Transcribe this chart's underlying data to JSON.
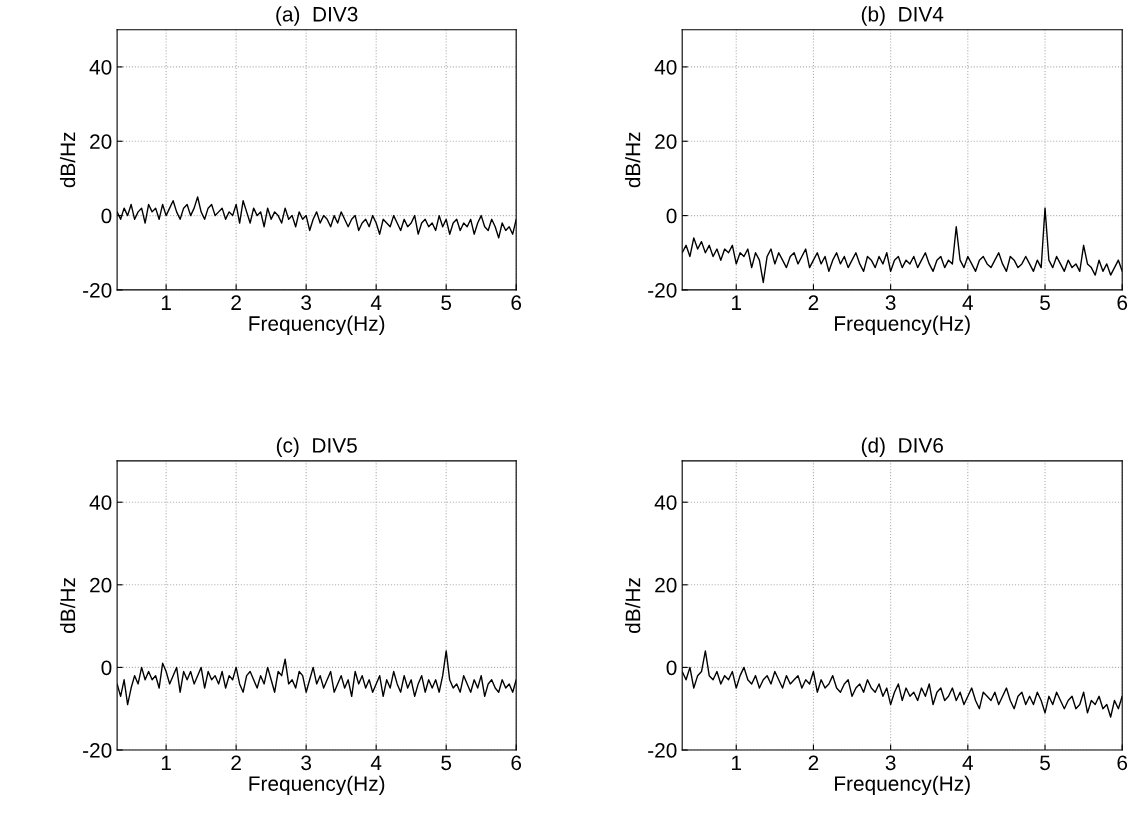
{
  "chart_data": [
    {
      "type": "line",
      "title": "(a)  DIV3",
      "xlabel": "Frequency(Hz)",
      "ylabel": "dB/Hz",
      "xlim": [
        0.3,
        6
      ],
      "ylim": [
        -20,
        50
      ],
      "xticks": [
        1,
        2,
        3,
        4,
        5,
        6
      ],
      "yticks": [
        -20,
        0,
        20,
        40
      ],
      "grid": true,
      "line_style": "solid",
      "marker": "none",
      "x": [
        0.3,
        0.35,
        0.4,
        0.45,
        0.5,
        0.55,
        0.6,
        0.65,
        0.7,
        0.75,
        0.8,
        0.85,
        0.9,
        0.95,
        1.0,
        1.05,
        1.1,
        1.15,
        1.2,
        1.25,
        1.3,
        1.35,
        1.4,
        1.45,
        1.5,
        1.55,
        1.6,
        1.65,
        1.7,
        1.75,
        1.8,
        1.85,
        1.9,
        1.95,
        2.0,
        2.05,
        2.1,
        2.15,
        2.2,
        2.25,
        2.3,
        2.35,
        2.4,
        2.45,
        2.5,
        2.55,
        2.6,
        2.65,
        2.7,
        2.75,
        2.8,
        2.85,
        2.9,
        2.95,
        3.0,
        3.05,
        3.1,
        3.15,
        3.2,
        3.25,
        3.3,
        3.35,
        3.4,
        3.45,
        3.5,
        3.55,
        3.6,
        3.65,
        3.7,
        3.75,
        3.8,
        3.85,
        3.9,
        3.95,
        4.0,
        4.05,
        4.1,
        4.15,
        4.2,
        4.25,
        4.3,
        4.35,
        4.4,
        4.45,
        4.5,
        4.55,
        4.6,
        4.65,
        4.7,
        4.75,
        4.8,
        4.85,
        4.9,
        4.95,
        5.0,
        5.05,
        5.1,
        5.15,
        5.2,
        5.25,
        5.3,
        5.35,
        5.4,
        5.45,
        5.5,
        5.55,
        5.6,
        5.65,
        5.7,
        5.75,
        5.8,
        5.85,
        5.9,
        5.95,
        6.0
      ],
      "series": [
        {
          "color": "#000000",
          "values": [
            1,
            -1,
            2,
            0,
            3,
            -1,
            1,
            2,
            -2,
            3,
            1,
            2,
            -1,
            3,
            0,
            2,
            4,
            1,
            -1,
            2,
            3,
            0,
            2,
            5,
            1,
            -1,
            2,
            3,
            0,
            1,
            2,
            -1,
            1,
            0,
            3,
            -2,
            4,
            1,
            -2,
            2,
            0,
            1,
            -3,
            2,
            -1,
            1,
            0,
            -2,
            2,
            -1,
            0,
            -3,
            1,
            -1,
            0,
            -4,
            -1,
            1,
            -2,
            0,
            -1,
            -3,
            0,
            -2,
            1,
            -1,
            -3,
            -1,
            0,
            -4,
            -2,
            -1,
            -3,
            0,
            -2,
            -5,
            -1,
            -2,
            -3,
            0,
            -2,
            -4,
            -1,
            -3,
            -2,
            0,
            -5,
            -2,
            -1,
            -3,
            -2,
            -4,
            0,
            -3,
            -1,
            -5,
            -2,
            -1,
            -4,
            -2,
            -3,
            -1,
            -5,
            -2,
            0,
            -3,
            -4,
            -1,
            -3,
            -6,
            -2,
            -4,
            -3,
            -5,
            -1
          ]
        }
      ]
    },
    {
      "type": "line",
      "title": "(b)  DIV4",
      "xlabel": "Frequency(Hz)",
      "ylabel": "dB/Hz",
      "xlim": [
        0.3,
        6
      ],
      "ylim": [
        -20,
        50
      ],
      "xticks": [
        1,
        2,
        3,
        4,
        5,
        6
      ],
      "yticks": [
        -20,
        0,
        20,
        40
      ],
      "grid": true,
      "line_style": "solid",
      "marker": "none",
      "x": [
        0.3,
        0.35,
        0.4,
        0.45,
        0.5,
        0.55,
        0.6,
        0.65,
        0.7,
        0.75,
        0.8,
        0.85,
        0.9,
        0.95,
        1.0,
        1.05,
        1.1,
        1.15,
        1.2,
        1.25,
        1.3,
        1.35,
        1.4,
        1.45,
        1.5,
        1.55,
        1.6,
        1.65,
        1.7,
        1.75,
        1.8,
        1.85,
        1.9,
        1.95,
        2.0,
        2.05,
        2.1,
        2.15,
        2.2,
        2.25,
        2.3,
        2.35,
        2.4,
        2.45,
        2.5,
        2.55,
        2.6,
        2.65,
        2.7,
        2.75,
        2.8,
        2.85,
        2.9,
        2.95,
        3.0,
        3.05,
        3.1,
        3.15,
        3.2,
        3.25,
        3.3,
        3.35,
        3.4,
        3.45,
        3.5,
        3.55,
        3.6,
        3.65,
        3.7,
        3.75,
        3.8,
        3.85,
        3.9,
        3.95,
        4.0,
        4.05,
        4.1,
        4.15,
        4.2,
        4.25,
        4.3,
        4.35,
        4.4,
        4.45,
        4.5,
        4.55,
        4.6,
        4.65,
        4.7,
        4.75,
        4.8,
        4.85,
        4.9,
        4.95,
        5.0,
        5.05,
        5.1,
        5.15,
        5.2,
        5.25,
        5.3,
        5.35,
        5.4,
        5.45,
        5.5,
        5.55,
        5.6,
        5.65,
        5.7,
        5.75,
        5.8,
        5.85,
        5.9,
        5.95,
        6.0
      ],
      "series": [
        {
          "color": "#000000",
          "values": [
            -10,
            -8,
            -11,
            -6,
            -9,
            -7,
            -10,
            -8,
            -11,
            -9,
            -12,
            -9,
            -10,
            -8,
            -13,
            -10,
            -11,
            -9,
            -14,
            -10,
            -12,
            -18,
            -11,
            -9,
            -13,
            -10,
            -12,
            -14,
            -11,
            -10,
            -13,
            -11,
            -9,
            -14,
            -12,
            -10,
            -13,
            -11,
            -15,
            -12,
            -10,
            -13,
            -11,
            -14,
            -12,
            -10,
            -13,
            -15,
            -11,
            -12,
            -14,
            -11,
            -13,
            -10,
            -15,
            -12,
            -11,
            -14,
            -12,
            -13,
            -11,
            -14,
            -12,
            -10,
            -13,
            -15,
            -12,
            -11,
            -14,
            -12,
            -13,
            -3,
            -12,
            -14,
            -11,
            -13,
            -15,
            -12,
            -11,
            -13,
            -14,
            -12,
            -10,
            -13,
            -15,
            -11,
            -12,
            -14,
            -13,
            -11,
            -13,
            -15,
            -12,
            -14,
            2,
            -12,
            -14,
            -11,
            -13,
            -15,
            -12,
            -14,
            -13,
            -15,
            -8,
            -13,
            -14,
            -16,
            -12,
            -15,
            -13,
            -16,
            -14,
            -12,
            -15
          ]
        }
      ]
    },
    {
      "type": "line",
      "title": "(c)  DIV5",
      "xlabel": "Frequency(Hz)",
      "ylabel": "dB/Hz",
      "xlim": [
        0.3,
        6
      ],
      "ylim": [
        -20,
        50
      ],
      "xticks": [
        1,
        2,
        3,
        4,
        5,
        6
      ],
      "yticks": [
        -20,
        0,
        20,
        40
      ],
      "grid": true,
      "line_style": "solid",
      "marker": "none",
      "x": [
        0.3,
        0.35,
        0.4,
        0.45,
        0.5,
        0.55,
        0.6,
        0.65,
        0.7,
        0.75,
        0.8,
        0.85,
        0.9,
        0.95,
        1.0,
        1.05,
        1.1,
        1.15,
        1.2,
        1.25,
        1.3,
        1.35,
        1.4,
        1.45,
        1.5,
        1.55,
        1.6,
        1.65,
        1.7,
        1.75,
        1.8,
        1.85,
        1.9,
        1.95,
        2.0,
        2.05,
        2.1,
        2.15,
        2.2,
        2.25,
        2.3,
        2.35,
        2.4,
        2.45,
        2.5,
        2.55,
        2.6,
        2.65,
        2.7,
        2.75,
        2.8,
        2.85,
        2.9,
        2.95,
        3.0,
        3.05,
        3.1,
        3.15,
        3.2,
        3.25,
        3.3,
        3.35,
        3.4,
        3.45,
        3.5,
        3.55,
        3.6,
        3.65,
        3.7,
        3.75,
        3.8,
        3.85,
        3.9,
        3.95,
        4.0,
        4.05,
        4.1,
        4.15,
        4.2,
        4.25,
        4.3,
        4.35,
        4.4,
        4.45,
        4.5,
        4.55,
        4.6,
        4.65,
        4.7,
        4.75,
        4.8,
        4.85,
        4.9,
        4.95,
        5.0,
        5.05,
        5.1,
        5.15,
        5.2,
        5.25,
        5.3,
        5.35,
        5.4,
        5.45,
        5.5,
        5.55,
        5.6,
        5.65,
        5.7,
        5.75,
        5.8,
        5.85,
        5.9,
        5.95,
        6.0
      ],
      "series": [
        {
          "color": "#000000",
          "values": [
            -4,
            -7,
            -3,
            -9,
            -5,
            -2,
            -4,
            0,
            -3,
            -1,
            -3,
            -2,
            -5,
            1,
            -1,
            -4,
            -2,
            0,
            -6,
            -1,
            -3,
            -1,
            -4,
            -2,
            0,
            -5,
            -1,
            -3,
            -2,
            -4,
            -1,
            -5,
            -2,
            -3,
            0,
            -4,
            -6,
            -2,
            -1,
            -3,
            -5,
            -2,
            -4,
            0,
            -3,
            -6,
            -1,
            -2,
            2,
            -4,
            -3,
            -5,
            -1,
            -2,
            -6,
            -3,
            0,
            -4,
            -2,
            -5,
            -3,
            -1,
            -6,
            -4,
            -2,
            -5,
            -3,
            -7,
            -1,
            -4,
            -2,
            -5,
            -3,
            -6,
            -4,
            -2,
            -7,
            -3,
            -5,
            -1,
            -4,
            -6,
            -2,
            -5,
            -3,
            -7,
            -4,
            -2,
            -6,
            -3,
            -5,
            -3,
            -6,
            -2,
            4,
            -3,
            -5,
            -4,
            -6,
            -2,
            -4,
            -6,
            -3,
            -5,
            -2,
            -7,
            -4,
            -3,
            -5,
            -6,
            -3,
            -5,
            -4,
            -6,
            -3
          ]
        }
      ]
    },
    {
      "type": "line",
      "title": "(d)  DIV6",
      "xlabel": "Frequency(Hz)",
      "ylabel": "dB/Hz",
      "xlim": [
        0.3,
        6
      ],
      "ylim": [
        -20,
        50
      ],
      "xticks": [
        1,
        2,
        3,
        4,
        5,
        6
      ],
      "yticks": [
        -20,
        0,
        20,
        40
      ],
      "grid": true,
      "line_style": "solid",
      "marker": "none",
      "x": [
        0.3,
        0.35,
        0.4,
        0.45,
        0.5,
        0.55,
        0.6,
        0.65,
        0.7,
        0.75,
        0.8,
        0.85,
        0.9,
        0.95,
        1.0,
        1.05,
        1.1,
        1.15,
        1.2,
        1.25,
        1.3,
        1.35,
        1.4,
        1.45,
        1.5,
        1.55,
        1.6,
        1.65,
        1.7,
        1.75,
        1.8,
        1.85,
        1.9,
        1.95,
        2.0,
        2.05,
        2.1,
        2.15,
        2.2,
        2.25,
        2.3,
        2.35,
        2.4,
        2.45,
        2.5,
        2.55,
        2.6,
        2.65,
        2.7,
        2.75,
        2.8,
        2.85,
        2.9,
        2.95,
        3.0,
        3.05,
        3.1,
        3.15,
        3.2,
        3.25,
        3.3,
        3.35,
        3.4,
        3.45,
        3.5,
        3.55,
        3.6,
        3.65,
        3.7,
        3.75,
        3.8,
        3.85,
        3.9,
        3.95,
        4.0,
        4.05,
        4.1,
        4.15,
        4.2,
        4.25,
        4.3,
        4.35,
        4.4,
        4.45,
        4.5,
        4.55,
        4.6,
        4.65,
        4.7,
        4.75,
        4.8,
        4.85,
        4.9,
        4.95,
        5.0,
        5.05,
        5.1,
        5.15,
        5.2,
        5.25,
        5.3,
        5.35,
        5.4,
        5.45,
        5.5,
        5.55,
        5.6,
        5.65,
        5.7,
        5.75,
        5.8,
        5.85,
        5.9,
        5.95,
        6.0
      ],
      "series": [
        {
          "color": "#000000",
          "values": [
            -1,
            -3,
            0,
            -5,
            -2,
            -1,
            4,
            -2,
            -3,
            -1,
            -4,
            -2,
            -3,
            -1,
            -5,
            -2,
            0,
            -3,
            -4,
            -2,
            -5,
            -3,
            -2,
            -4,
            -1,
            -3,
            -5,
            -2,
            -4,
            -3,
            -2,
            -5,
            -3,
            -4,
            -1,
            -6,
            -3,
            -5,
            -4,
            -2,
            -5,
            -6,
            -4,
            -3,
            -7,
            -5,
            -4,
            -6,
            -3,
            -5,
            -6,
            -4,
            -7,
            -5,
            -9,
            -6,
            -4,
            -8,
            -5,
            -7,
            -6,
            -8,
            -5,
            -7,
            -4,
            -9,
            -6,
            -5,
            -8,
            -7,
            -5,
            -8,
            -6,
            -9,
            -7,
            -5,
            -8,
            -10,
            -6,
            -7,
            -8,
            -6,
            -9,
            -7,
            -5,
            -8,
            -10,
            -7,
            -6,
            -9,
            -7,
            -9,
            -6,
            -8,
            -11,
            -7,
            -9,
            -6,
            -8,
            -10,
            -8,
            -7,
            -10,
            -9,
            -6,
            -11,
            -8,
            -9,
            -7,
            -10,
            -9,
            -12,
            -8,
            -10,
            -7
          ]
        }
      ]
    }
  ]
}
